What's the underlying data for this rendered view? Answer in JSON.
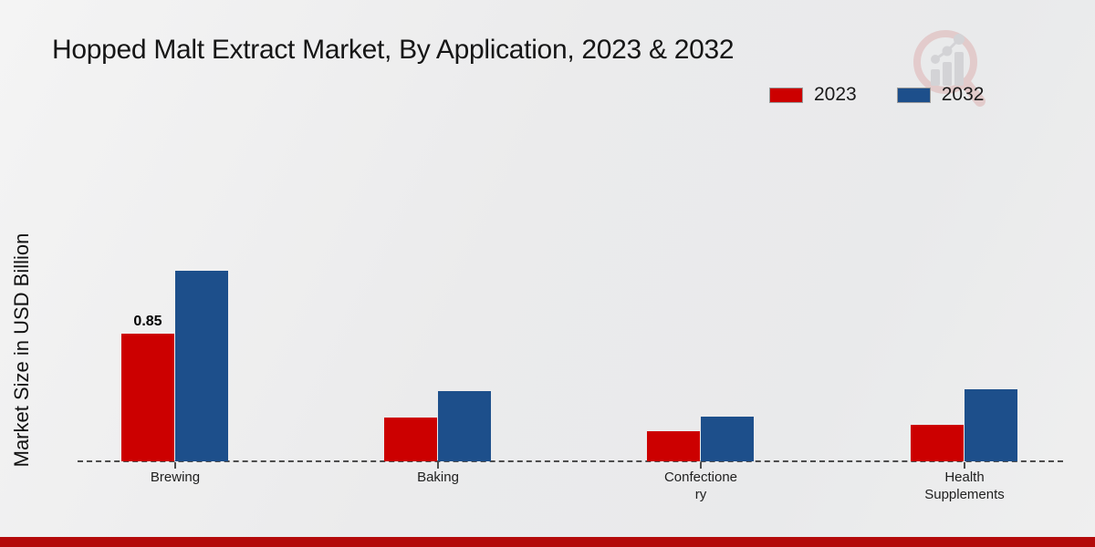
{
  "title": "Hopped Malt Extract Market, By Application, 2023 & 2032",
  "ylabel": "Market Size in USD Billion",
  "legend": [
    {
      "label": "2023",
      "color": "#cc0000"
    },
    {
      "label": "2032",
      "color": "#1d4f8b"
    }
  ],
  "watermark_icon": "magnifier-bar-chart-logo",
  "chart_data": {
    "type": "bar",
    "title": "Hopped Malt Extract Market, By Application, 2023 & 2032",
    "ylabel": "Market Size in USD Billion",
    "xlabel": "",
    "categories": [
      "Brewing",
      "Baking",
      "Confectionery",
      "Health Supplements"
    ],
    "category_label_lines": [
      [
        "Brewing"
      ],
      [
        "Baking"
      ],
      [
        "Confectione",
        "ry"
      ],
      [
        "Health",
        "Supplements"
      ]
    ],
    "series": [
      {
        "name": "2023",
        "color": "#cc0000",
        "values": [
          0.85,
          0.29,
          0.2,
          0.24
        ]
      },
      {
        "name": "2032",
        "color": "#1d4f8b",
        "values": [
          1.27,
          0.47,
          0.3,
          0.48
        ]
      }
    ],
    "data_labels": [
      {
        "series": "2023",
        "category": "Brewing",
        "text": "0.85"
      }
    ],
    "ylim": [
      0,
      1.4
    ],
    "grid": false,
    "legend_position": "top-right",
    "baseline_style": "dashed",
    "y_axis_ticks_visible": false
  },
  "footer": {
    "bar_color": "#b40a0a"
  }
}
